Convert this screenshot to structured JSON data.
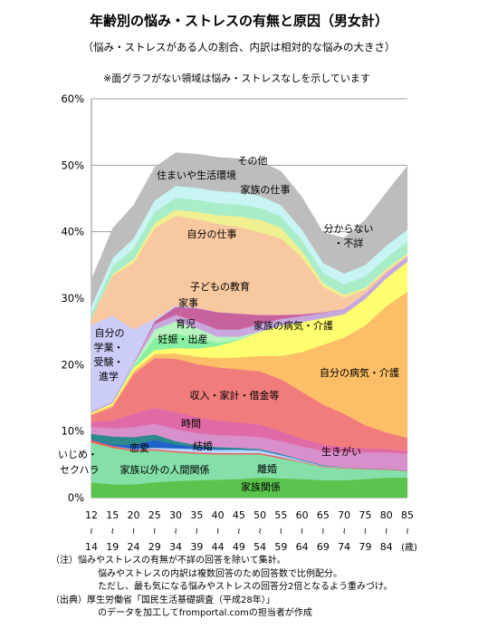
{
  "chart_data": {
    "type": "area",
    "title": "年齢別の悩み・ストレスの有無と原因（男女計）",
    "subtitle": "（悩み・ストレスがある人の割合、内訳は相対的な悩みの大きさ）",
    "note": "※面グラフがない領域は悩み・ストレスなしを示しています",
    "ylim": [
      0,
      60
    ],
    "yticks": [
      "0%",
      "10%",
      "20%",
      "30%",
      "40%",
      "50%",
      "60%"
    ],
    "grid": true,
    "x_top": [
      "12",
      "15",
      "20",
      "25",
      "30",
      "35",
      "40",
      "45",
      "50",
      "55",
      "60",
      "65",
      "70",
      "75",
      "80",
      "85"
    ],
    "x_tilde": "≀",
    "x_bottom": [
      "14",
      "19",
      "24",
      "29",
      "34",
      "39",
      "44",
      "49",
      "54",
      "59",
      "64",
      "69",
      "74",
      "79",
      "84"
    ],
    "x_unit": "(歳)",
    "series": [
      {
        "name": "家族関係",
        "color": "#5bc44e",
        "values": [
          2.3,
          2.0,
          2.0,
          2.3,
          2.5,
          2.6,
          2.7,
          2.8,
          3.0,
          2.9,
          2.8,
          2.6,
          2.6,
          2.8,
          3.0,
          3.0
        ]
      },
      {
        "name": "家族以外の人間関係",
        "color": "#84e0a8",
        "values": [
          6.0,
          5.5,
          5.0,
          4.8,
          4.3,
          4.0,
          3.8,
          3.7,
          3.5,
          3.0,
          2.5,
          2.0,
          1.8,
          1.5,
          1.2,
          1.0
        ]
      },
      {
        "name": "いじめ・セクハラ",
        "color": "#ee5a52",
        "values": [
          0.4,
          0.3,
          0.2,
          0.2,
          0.2,
          0.2,
          0.2,
          0.2,
          0.2,
          0.2,
          0.1,
          0.1,
          0.1,
          0.1,
          0.1,
          0.1
        ]
      },
      {
        "name": "離婚",
        "color": "#b8d8ff",
        "values": [
          0.0,
          0.0,
          0.1,
          0.2,
          0.4,
          0.5,
          0.5,
          0.5,
          0.4,
          0.3,
          0.2,
          0.1,
          0.1,
          0.0,
          0.0,
          0.0
        ]
      },
      {
        "name": "結婚",
        "color": "#1e64c8",
        "values": [
          0.1,
          0.2,
          0.6,
          1.2,
          0.6,
          0.3,
          0.2,
          0.1,
          0.1,
          0.1,
          0.0,
          0.0,
          0.0,
          0.0,
          0.0,
          0.0
        ]
      },
      {
        "name": "恋愛",
        "color": "#2e8a8a",
        "values": [
          0.8,
          1.2,
          1.2,
          0.8,
          0.5,
          0.3,
          0.2,
          0.2,
          0.1,
          0.1,
          0.1,
          0.1,
          0.0,
          0.0,
          0.0,
          0.0
        ]
      },
      {
        "name": "生きがい",
        "color": "#d890cc",
        "values": [
          1.0,
          1.2,
          1.5,
          1.6,
          1.8,
          1.8,
          1.8,
          1.8,
          1.8,
          1.9,
          2.0,
          2.1,
          2.2,
          2.4,
          2.5,
          2.5
        ]
      },
      {
        "name": "時間",
        "color": "#e06aa6",
        "values": [
          0.8,
          1.2,
          2.0,
          2.4,
          2.6,
          2.4,
          2.2,
          2.0,
          1.9,
          1.5,
          1.2,
          1.0,
          0.8,
          0.6,
          0.5,
          0.4
        ]
      },
      {
        "name": "収入・家計・借金等",
        "color": "#f07c7c",
        "values": [
          1.0,
          2.0,
          6.0,
          7.5,
          8.0,
          8.0,
          8.0,
          8.0,
          8.0,
          7.8,
          7.0,
          6.0,
          5.0,
          3.5,
          2.5,
          2.0
        ]
      },
      {
        "name": "自分の病気・介護",
        "color": "#fcbe66",
        "values": [
          0.2,
          0.3,
          0.4,
          0.6,
          0.8,
          1.1,
          1.4,
          1.8,
          2.3,
          3.5,
          6.0,
          9.0,
          11.5,
          15.0,
          19.0,
          22.0
        ]
      },
      {
        "name": "家族の病気・介護",
        "color": "#ffff70",
        "values": [
          0.2,
          0.3,
          0.5,
          0.6,
          0.8,
          1.2,
          1.8,
          2.6,
          3.6,
          4.6,
          4.5,
          4.0,
          3.5,
          4.0,
          4.2,
          4.5
        ]
      },
      {
        "name": "妊娠・出産",
        "color": "#88f0a0",
        "values": [
          0.0,
          0.0,
          0.3,
          1.8,
          2.2,
          1.6,
          0.5,
          0.1,
          0.0,
          0.0,
          0.0,
          0.0,
          0.0,
          0.0,
          0.0,
          0.0
        ]
      },
      {
        "name": "育児",
        "color": "#b8f4c0",
        "values": [
          0.0,
          0.0,
          0.2,
          1.3,
          1.8,
          1.5,
          0.9,
          0.4,
          0.1,
          0.0,
          0.0,
          0.0,
          0.0,
          0.0,
          0.0,
          0.0
        ]
      },
      {
        "name": "家事",
        "color": "#c8a8dc",
        "values": [
          0.2,
          0.2,
          0.3,
          0.8,
          1.0,
          1.0,
          1.1,
          1.1,
          1.1,
          1.0,
          0.9,
          0.8,
          0.8,
          0.8,
          0.8,
          0.8
        ]
      },
      {
        "name": "子どもの教育",
        "color": "#c8629c",
        "values": [
          0.0,
          0.0,
          0.0,
          0.4,
          1.2,
          2.0,
          2.6,
          2.4,
          1.4,
          0.6,
          0.3,
          0.1,
          0.0,
          0.0,
          0.0,
          0.0
        ]
      },
      {
        "name": "自分の学業・受験・進学",
        "color": "#ccccf8",
        "values": [
          13.0,
          13.0,
          5.0,
          0.4,
          0.2,
          0.1,
          0.0,
          0.0,
          0.0,
          0.0,
          0.0,
          0.0,
          0.0,
          0.0,
          0.0,
          0.0
        ]
      },
      {
        "name": "自分の仕事",
        "color": "#f8c8a0",
        "values": [
          1.0,
          6.0,
          10.0,
          13.6,
          13.5,
          13.3,
          13.3,
          13.0,
          12.4,
          11.5,
          8.5,
          3.8,
          1.7,
          0.6,
          0.3,
          0.1
        ]
      },
      {
        "name": "家族の仕事",
        "color": "#f0f090",
        "values": [
          0.0,
          0.2,
          0.6,
          0.8,
          0.9,
          1.1,
          1.3,
          1.6,
          1.9,
          1.6,
          1.0,
          0.6,
          0.4,
          0.3,
          0.3,
          0.3
        ]
      },
      {
        "name": "住まいや生活環境",
        "color": "#a8ecc8",
        "values": [
          0.8,
          1.2,
          1.6,
          1.7,
          1.8,
          1.8,
          1.8,
          1.8,
          1.8,
          1.7,
          1.6,
          1.5,
          1.6,
          1.7,
          1.7,
          1.8
        ]
      },
      {
        "name": "その他",
        "color": "#c8f4f4",
        "values": [
          1.0,
          1.2,
          1.5,
          1.7,
          1.8,
          1.8,
          1.8,
          1.8,
          1.8,
          1.7,
          1.6,
          1.5,
          1.6,
          1.7,
          1.8,
          1.8
        ]
      },
      {
        "name": "分からない・不詳",
        "color": "#bdbdbd",
        "values": [
          4.0,
          4.5,
          5.0,
          5.0,
          5.0,
          5.1,
          5.1,
          5.1,
          5.2,
          5.1,
          4.9,
          4.6,
          5.4,
          6.8,
          8.0,
          9.6
        ]
      }
    ],
    "area_labels": {
      "family_relations": "家族関係",
      "other_relations": "家族以外の人間関係",
      "bullying": "いじめ・",
      "bullying2": "セクハラ",
      "divorce": "離婚",
      "marriage": "結婚",
      "love": "恋愛",
      "ikigai": "生きがい",
      "time": "時間",
      "income": "収入・家計・借金等",
      "own_illness": "自分の病気・介護",
      "family_illness": "家族の病気・介護",
      "pregnancy": "妊娠・出産",
      "childcare": "育児",
      "housework": "家事",
      "education": "子どもの教育",
      "study1": "自分の",
      "study2": "学業・",
      "study3": "受験・",
      "study4": "進学",
      "own_work": "自分の仕事",
      "family_work": "家族の仕事",
      "living": "住まいや生活環境",
      "other": "その他",
      "unknown1": "分からない",
      "unknown2": "・不詳"
    }
  },
  "footnotes": {
    "line1": "（注）悩みやストレスの有無が不詳の回答を除いて集計。",
    "line2": "悩みやストレスの内訳は複数回答のため回答数で比例配分。",
    "line3": "ただし、最も気になる悩みやストレスの回答分2倍となるよう重みづけ。",
    "line4": "（出典）厚生労働省「国民生活基礎調査（平成28年）」",
    "line5": "のデータを加工してfromportal.comの担当者が作成"
  }
}
